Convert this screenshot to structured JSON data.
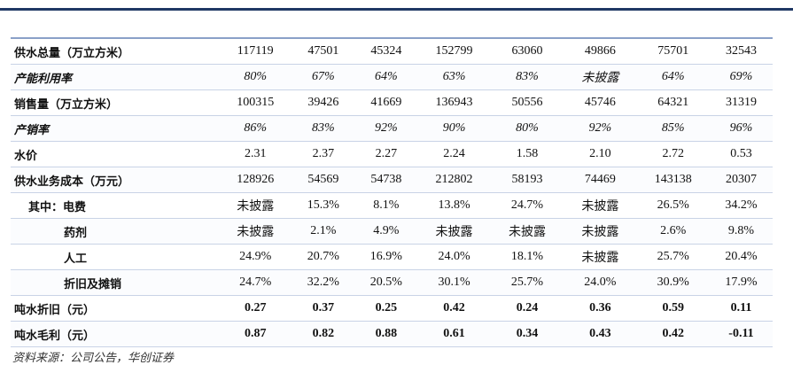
{
  "table": {
    "rows": [
      {
        "label": "供水总量（万立方米）",
        "cells": [
          "117119",
          "47501",
          "45324",
          "152799",
          "63060",
          "49866",
          "75701",
          "32543"
        ]
      },
      {
        "label": "产能利用率",
        "cells": [
          "80%",
          "67%",
          "64%",
          "63%",
          "83%",
          "未披露",
          "64%",
          "69%"
        ]
      },
      {
        "label": "销售量（万立方米）",
        "cells": [
          "100315",
          "39426",
          "41669",
          "136943",
          "50556",
          "45746",
          "64321",
          "31319"
        ]
      },
      {
        "label": "产销率",
        "cells": [
          "86%",
          "83%",
          "92%",
          "90%",
          "80%",
          "92%",
          "85%",
          "96%"
        ]
      },
      {
        "label": "水价",
        "cells": [
          "2.31",
          "2.37",
          "2.27",
          "2.24",
          "1.58",
          "2.10",
          "2.72",
          "0.53"
        ]
      },
      {
        "label": "供水业务成本（万元）",
        "cells": [
          "128926",
          "54569",
          "54738",
          "212802",
          "58193",
          "74469",
          "143138",
          "20307"
        ]
      },
      {
        "label": "其中：电费",
        "cells": [
          "未披露",
          "15.3%",
          "8.1%",
          "13.8%",
          "24.7%",
          "未披露",
          "26.5%",
          "34.2%"
        ]
      },
      {
        "label": "药剂",
        "cells": [
          "未披露",
          "2.1%",
          "4.9%",
          "未披露",
          "未披露",
          "未披露",
          "2.6%",
          "9.8%"
        ]
      },
      {
        "label": "人工",
        "cells": [
          "24.9%",
          "20.7%",
          "16.9%",
          "24.0%",
          "18.1%",
          "未披露",
          "25.7%",
          "20.4%"
        ]
      },
      {
        "label": "折旧及摊销",
        "cells": [
          "24.7%",
          "32.2%",
          "20.5%",
          "30.1%",
          "25.7%",
          "24.0%",
          "30.9%",
          "17.9%"
        ]
      },
      {
        "label": "吨水折旧（元）",
        "cells": [
          "0.27",
          "0.37",
          "0.25",
          "0.42",
          "0.24",
          "0.36",
          "0.59",
          "0.11"
        ]
      },
      {
        "label": "吨水毛利（元）",
        "cells": [
          "0.87",
          "0.82",
          "0.88",
          "0.61",
          "0.34",
          "0.43",
          "0.42",
          "-0.11"
        ]
      }
    ]
  },
  "source": "资料来源：公司公告，华创证券"
}
